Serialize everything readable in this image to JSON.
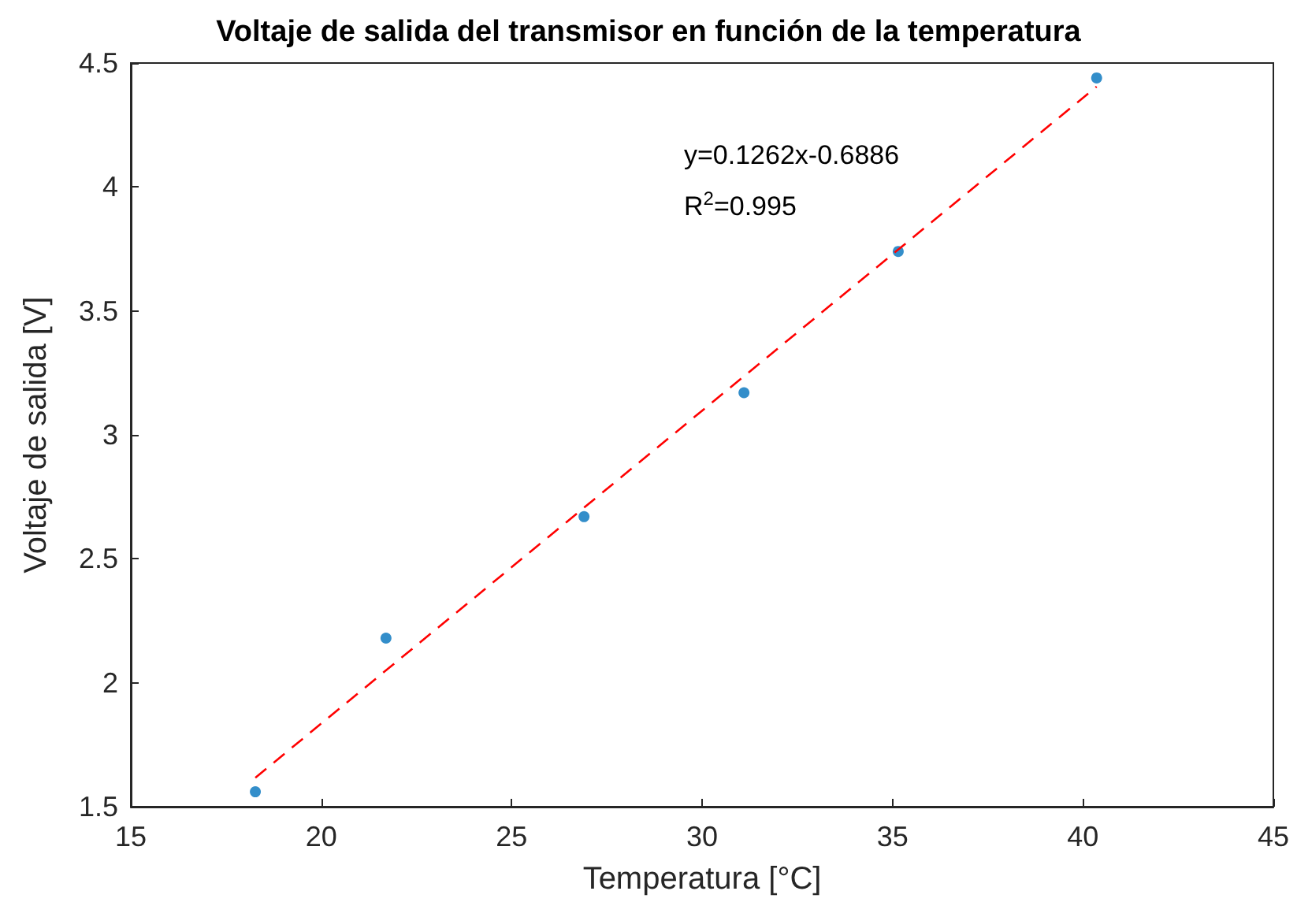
{
  "chart_data": {
    "type": "scatter",
    "title": "Voltaje de salida del transmisor en función de la temperatura",
    "xlabel": "Temperatura [°C]",
    "ylabel": "Voltaje de salida [V]",
    "xlim": [
      15,
      45
    ],
    "xticks": [
      15,
      20,
      25,
      30,
      35,
      40,
      45
    ],
    "ylim": [
      1.5,
      4.5
    ],
    "yticks": [
      1.5,
      2,
      2.5,
      3,
      3.5,
      4,
      4.5
    ],
    "grid": false,
    "marker": "circle",
    "annotations": [
      "y=0.1262x-0.6886",
      "R$^{2}$=0.995"
    ],
    "series": [
      {
        "color": "#0072bd",
        "x": [
          18.27,
          21.7,
          26.9,
          31.1,
          35.15,
          40.36
        ],
        "values": [
          1.56,
          2.18,
          2.67,
          3.17,
          3.74,
          4.44
        ]
      },
      {
        "type": "line",
        "color": "#ff0000",
        "line_style": "dashed",
        "marker": "none",
        "x": [
          18.27,
          40.36
        ],
        "values": [
          1.617,
          4.405
        ]
      }
    ]
  }
}
